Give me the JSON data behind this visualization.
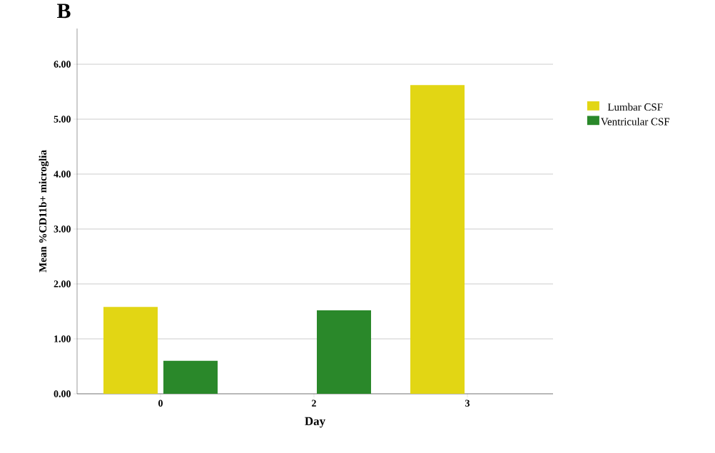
{
  "chart_data": {
    "type": "bar",
    "xlabel": "Day",
    "ylabel": "Mean %CD11b+ microglia",
    "annotations": [
      "B"
    ],
    "categories": [
      "0",
      "2",
      "3"
    ],
    "series": [
      {
        "name": "Lumbar CSF",
        "color": "#e2d614",
        "values": [
          1.58,
          null,
          5.62
        ]
      },
      {
        "name": "Ventricular CSF",
        "color": "#2a882a",
        "values": [
          0.6,
          1.52,
          null
        ]
      }
    ],
    "ylim": [
      0,
      6.65
    ],
    "yticks": [
      {
        "value": 0,
        "label": "0.00"
      },
      {
        "value": 1,
        "label": "1.00"
      },
      {
        "value": 2,
        "label": "2.00"
      },
      {
        "value": 3,
        "label": "3.00"
      },
      {
        "value": 4,
        "label": "4.00"
      },
      {
        "value": 5,
        "label": "5.00"
      },
      {
        "value": 6,
        "label": "6.00"
      }
    ],
    "grid": "y",
    "legend": "right"
  }
}
